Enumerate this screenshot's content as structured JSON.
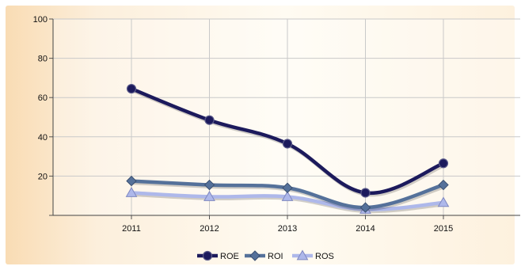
{
  "chart_data": {
    "type": "line",
    "categories": [
      "2011",
      "2012",
      "2013",
      "2014",
      "2015"
    ],
    "y_ticks": [
      "100",
      "80",
      "60",
      "40",
      "20"
    ],
    "ylim": [
      0,
      100
    ],
    "grid": true,
    "legend_position": "bottom",
    "series": [
      {
        "name": "ROE",
        "values": [
          64.5,
          48.5,
          36.5,
          11.5,
          26.5
        ],
        "color": "#1c1a5c",
        "marker": "circle"
      },
      {
        "name": "ROI",
        "values": [
          17.5,
          15.5,
          14,
          4,
          15.5
        ],
        "color": "#55719a",
        "marker": "diamond"
      },
      {
        "name": "ROS",
        "values": [
          11.5,
          9.5,
          9.5,
          3,
          6.5
        ],
        "color": "#aeb8ea",
        "marker": "triangle"
      }
    ]
  }
}
